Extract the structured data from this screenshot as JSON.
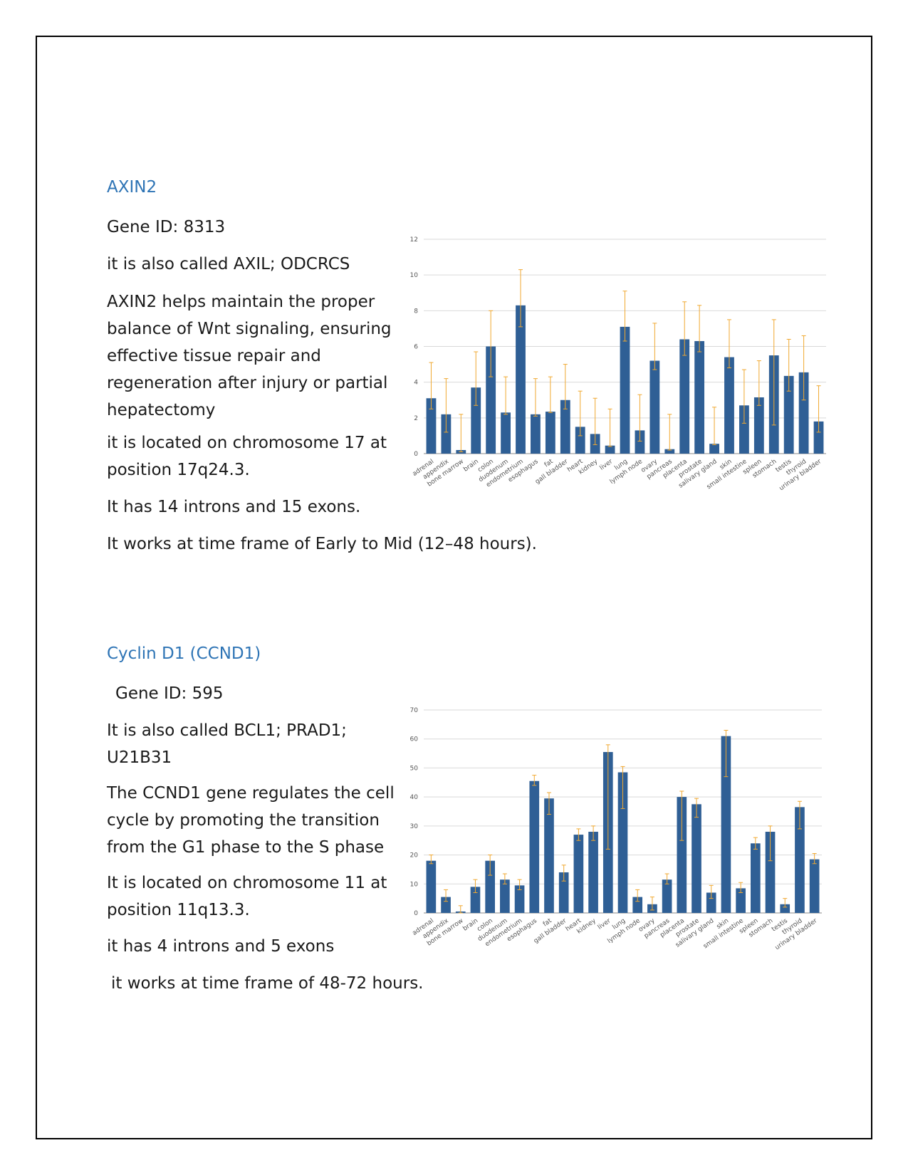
{
  "section1": {
    "title": "AXIN2",
    "gene_id": "Gene ID: 8313",
    "aliases": "it is also called AXIL; ODCRCS",
    "description_lines": [
      "AXIN2 helps maintain the proper",
      "balance of Wnt signaling, ensuring",
      "effective tissue repair and",
      "regeneration after injury or partial",
      "hepatectomy"
    ],
    "location_lines": [
      "it is located on chromosome 17 at",
      "position 17q24.3."
    ],
    "structure": "It has 14 introns and 15 exons.",
    "timeframe": "It works at time frame of Early to Mid (12–48 hours)."
  },
  "section2": {
    "title": "Cyclin D1 (CCND1)",
    "gene_id": "Gene ID: 595",
    "alias_lines": [
      "It is also called BCL1; PRAD1;",
      "U21B31"
    ],
    "description_lines": [
      "The CCND1 gene regulates the cell",
      "cycle by promoting the transition",
      "from the G1 phase to the S phase"
    ],
    "location_lines": [
      "It is located on chromosome 11 at",
      "position 11q13.3."
    ],
    "structure": "it has 4 introns and 5 exons",
    "timeframe": "it works at time frame of 48-72 hours."
  },
  "colors": {
    "heading": "#2e74b5",
    "bar": "#2f5f95",
    "error_bar": "#f0a830",
    "grid": "#d9d9d9"
  },
  "chart_data": [
    {
      "type": "bar",
      "categories": [
        "adrenal",
        "appendix",
        "bone marrow",
        "brain",
        "colon",
        "duodenum",
        "endometrium",
        "esophagus",
        "fat",
        "gall bladder",
        "heart",
        "kidney",
        "liver",
        "lung",
        "lymph node",
        "ovary",
        "pancreas",
        "placenta",
        "prostate",
        "salivary gland",
        "skin",
        "small intestine",
        "spleen",
        "stomach",
        "testis",
        "thyroid",
        "urinary bladder"
      ],
      "values": [
        3.1,
        2.2,
        0.2,
        3.7,
        6.0,
        2.3,
        8.3,
        2.2,
        2.35,
        3.0,
        1.5,
        1.1,
        0.45,
        7.1,
        1.3,
        5.2,
        0.25,
        6.4,
        6.3,
        0.55,
        5.4,
        2.7,
        3.15,
        5.5,
        4.35,
        4.55,
        1.8
      ],
      "error_low": [
        2.5,
        1.2,
        0.1,
        2.7,
        4.3,
        2.2,
        7.1,
        2.1,
        2.3,
        2.5,
        1.0,
        0.5,
        0.4,
        6.3,
        0.7,
        4.7,
        0.2,
        5.5,
        5.7,
        0.5,
        4.8,
        1.7,
        2.7,
        1.6,
        3.5,
        3.0,
        1.2
      ],
      "error_high": [
        5.1,
        4.2,
        2.2,
        5.7,
        8.0,
        4.3,
        10.3,
        4.2,
        4.3,
        5.0,
        3.5,
        3.1,
        2.5,
        9.1,
        3.3,
        7.3,
        2.2,
        8.5,
        8.3,
        2.6,
        7.5,
        4.7,
        5.2,
        7.5,
        6.4,
        6.6,
        3.8
      ],
      "ylim": [
        0,
        12
      ],
      "yticks": [
        0,
        2,
        4,
        6,
        8,
        10,
        12
      ],
      "grid": true
    },
    {
      "type": "bar",
      "categories": [
        "adrenal",
        "appendix",
        "bone marrow",
        "brain",
        "colon",
        "duodenum",
        "endometrium",
        "esophagus",
        "fat",
        "gall bladder",
        "heart",
        "kidney",
        "liver",
        "lung",
        "lymph node",
        "ovary",
        "pancreas",
        "placenta",
        "prostate",
        "salivary gland",
        "skin",
        "small intestine",
        "spleen",
        "stomach",
        "testis",
        "thyroid",
        "urinary bladder"
      ],
      "values": [
        18,
        5.5,
        0.5,
        9,
        18,
        11.5,
        9.5,
        45.5,
        39.5,
        14,
        27,
        28,
        55.5,
        48.5,
        5.5,
        3,
        11.5,
        40,
        37.5,
        7,
        61,
        8.5,
        24,
        28,
        3,
        36.5,
        18.5
      ],
      "error_low": [
        17,
        4,
        0,
        7,
        13,
        10,
        8,
        44,
        34,
        11,
        25,
        25,
        22,
        36,
        4,
        1,
        10,
        25,
        33,
        5,
        47,
        7,
        22,
        18,
        2,
        29,
        17
      ],
      "error_high": [
        20,
        8,
        2.5,
        11.5,
        20,
        13.5,
        11.5,
        47.5,
        41.5,
        16.5,
        29,
        30,
        58,
        50.5,
        8,
        5.5,
        13.5,
        42,
        39.5,
        9.5,
        63,
        10.5,
        26,
        30,
        5,
        38.5,
        20.5
      ],
      "ylim": [
        0,
        70
      ],
      "yticks": [
        0,
        10,
        20,
        30,
        40,
        50,
        60,
        70
      ],
      "grid": true
    }
  ]
}
